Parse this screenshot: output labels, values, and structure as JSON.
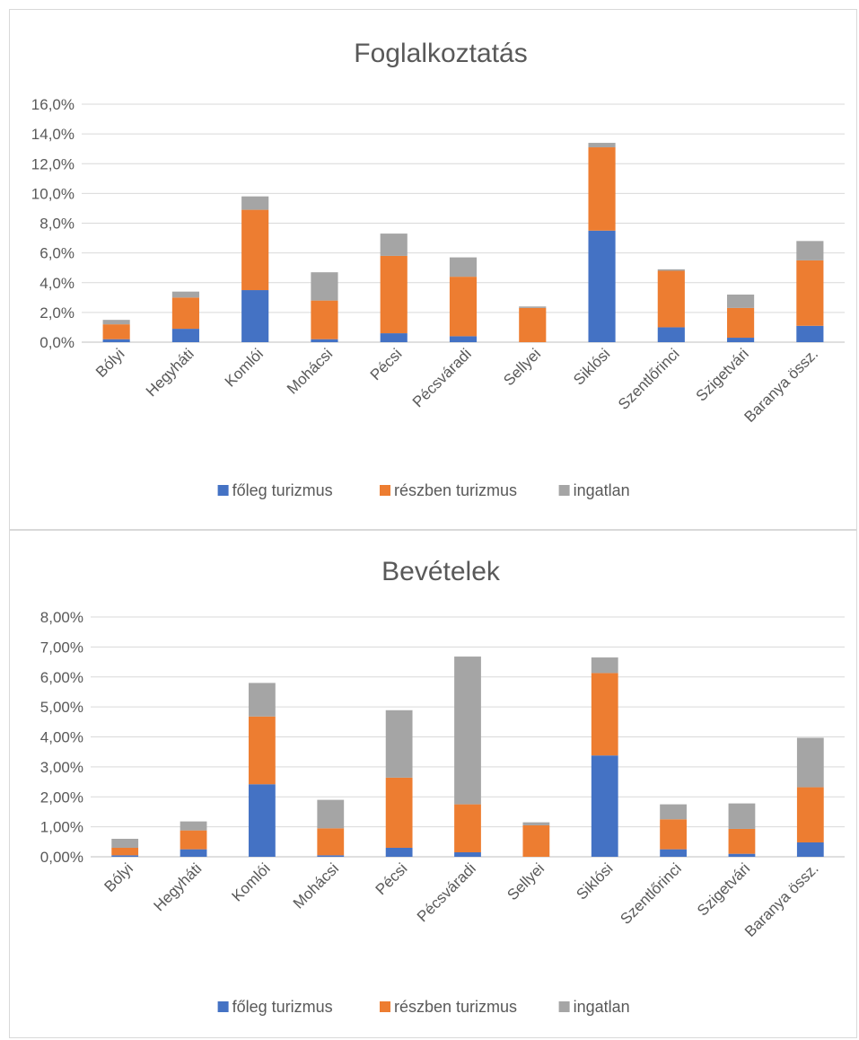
{
  "chart_data": [
    {
      "type": "bar",
      "stacked": true,
      "title": "Foglalkoztatás",
      "categories": [
        "Bólyi",
        "Hegyháti",
        "Komlói",
        "Mohácsi",
        "Pécsi",
        "Pécsváradi",
        "Sellyei",
        "Siklósi",
        "Szentlőrinci",
        "Szigetvári",
        "Baranya össz."
      ],
      "series": [
        {
          "name": "főleg turizmus",
          "color": "#4472C4",
          "values": [
            0.2,
            0.9,
            3.5,
            0.2,
            0.6,
            0.4,
            0.0,
            7.5,
            1.0,
            0.3,
            1.1
          ]
        },
        {
          "name": "részben turizmus",
          "color": "#ED7D31",
          "values": [
            1.0,
            2.1,
            5.4,
            2.6,
            5.2,
            4.0,
            2.3,
            5.6,
            3.8,
            2.0,
            4.4
          ]
        },
        {
          "name": "ingatlan",
          "color": "#A5A5A5",
          "values": [
            0.3,
            0.4,
            0.9,
            1.9,
            1.5,
            1.3,
            0.1,
            0.3,
            0.1,
            0.9,
            1.3
          ]
        }
      ],
      "ylim": [
        0,
        16
      ],
      "yticks": [
        "0,0%",
        "2,0%",
        "4,0%",
        "6,0%",
        "8,0%",
        "10,0%",
        "12,0%",
        "14,0%",
        "16,0%"
      ],
      "xlabel": "",
      "ylabel": "",
      "grid": true,
      "legend": "bottom"
    },
    {
      "type": "bar",
      "stacked": true,
      "title": "Bevételek",
      "categories": [
        "Bólyi",
        "Hegyháti",
        "Komlói",
        "Mohácsi",
        "Pécsi",
        "Pécsváradi",
        "Sellyei",
        "Siklósi",
        "Szentlőrinci",
        "Szigetvári",
        "Baranya össz."
      ],
      "series": [
        {
          "name": "főleg turizmus",
          "color": "#4472C4",
          "values": [
            0.05,
            0.25,
            2.42,
            0.05,
            0.3,
            0.15,
            0.0,
            3.38,
            0.25,
            0.1,
            0.48
          ]
        },
        {
          "name": "részben turizmus",
          "color": "#ED7D31",
          "values": [
            0.25,
            0.63,
            2.26,
            0.9,
            2.34,
            1.6,
            1.05,
            2.75,
            1.0,
            0.83,
            1.84
          ]
        },
        {
          "name": "ingatlan",
          "color": "#A5A5A5",
          "values": [
            0.3,
            0.3,
            1.12,
            0.95,
            2.25,
            4.93,
            0.1,
            0.52,
            0.5,
            0.85,
            1.65
          ]
        }
      ],
      "ylim": [
        0,
        8
      ],
      "yticks": [
        "0,00%",
        "1,00%",
        "2,00%",
        "3,00%",
        "4,00%",
        "5,00%",
        "6,00%",
        "7,00%",
        "8,00%"
      ],
      "xlabel": "",
      "ylabel": "",
      "grid": true,
      "legend": "bottom"
    }
  ]
}
